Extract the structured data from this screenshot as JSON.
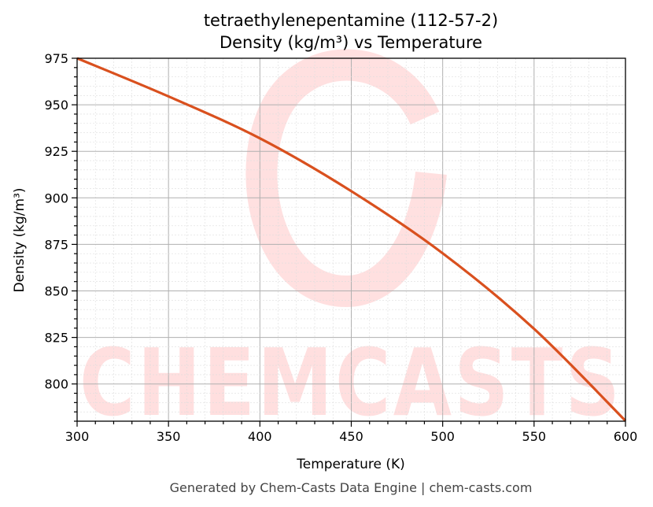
{
  "chart_data": {
    "type": "line",
    "title": "tetraethylenepentamine (112-57-2)",
    "subtitle": "Density (kg/m³) vs Temperature",
    "xlabel": "Temperature (K)",
    "ylabel": "Density (kg/m³)",
    "xlim": [
      300,
      600
    ],
    "ylim": [
      780,
      975
    ],
    "xticks": [
      300,
      350,
      400,
      450,
      500,
      550,
      600
    ],
    "yticks": [
      800,
      825,
      850,
      875,
      900,
      925,
      950,
      975
    ],
    "grid": true,
    "minor_grid": true,
    "series": [
      {
        "color": "#d9501e",
        "x": [
          300,
          350,
          400,
          450,
          500,
          550,
          600
        ],
        "y": [
          975,
          954.5,
          932,
          903.6,
          870.2,
          829.6,
          780.2
        ]
      }
    ],
    "watermark": "CHEMCASTS",
    "footer": "Generated by Chem-Casts Data Engine | chem-casts.com"
  }
}
